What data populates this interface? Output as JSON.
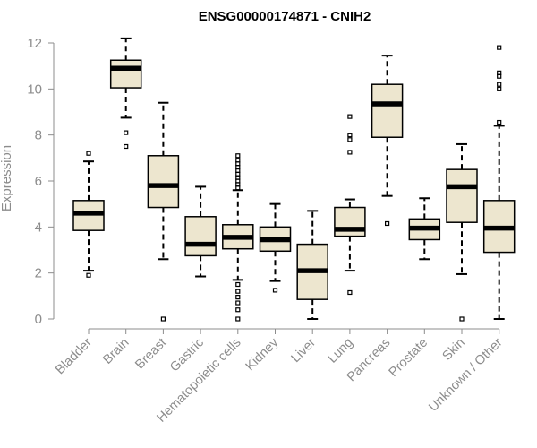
{
  "chart_data": {
    "type": "boxplot",
    "title": "ENSG00000174871 - CNIH2",
    "xlabel": "",
    "ylabel": "Expression",
    "ylim": [
      0,
      12
    ],
    "yticks": [
      0,
      2,
      4,
      6,
      8,
      10,
      12
    ],
    "box_fill": "#ede6cf",
    "categories": [
      "Bladder",
      "Brain",
      "Breast",
      "Gastric",
      "Hematopoietic cells",
      "Kidney",
      "Liver",
      "Lung",
      "Pancreas",
      "Prostate",
      "Skin",
      "Unknown / Other"
    ],
    "boxes": [
      {
        "name": "Bladder",
        "whisker_low": 2.1,
        "q1": 3.85,
        "median": 4.6,
        "q3": 5.15,
        "whisker_high": 6.85,
        "outliers": [
          1.9,
          7.2
        ]
      },
      {
        "name": "Brain",
        "whisker_low": 8.75,
        "q1": 10.05,
        "median": 10.9,
        "q3": 11.25,
        "whisker_high": 12.2,
        "outliers": [
          7.5,
          8.1
        ]
      },
      {
        "name": "Breast",
        "whisker_low": 2.6,
        "q1": 4.85,
        "median": 5.8,
        "q3": 7.1,
        "whisker_high": 9.4,
        "outliers": [
          0.0
        ]
      },
      {
        "name": "Gastric",
        "whisker_low": 1.85,
        "q1": 2.75,
        "median": 3.25,
        "q3": 4.45,
        "whisker_high": 5.75,
        "outliers": []
      },
      {
        "name": "Hematopoietic cells",
        "whisker_low": 1.7,
        "q1": 3.05,
        "median": 3.55,
        "q3": 4.1,
        "whisker_high": 5.6,
        "outliers": [
          0.0,
          0.4,
          0.7,
          0.95,
          1.2,
          1.5,
          5.7,
          5.85,
          6.0,
          6.15,
          6.3,
          6.45,
          6.6,
          6.75,
          6.9,
          7.1
        ]
      },
      {
        "name": "Kidney",
        "whisker_low": 1.65,
        "q1": 2.95,
        "median": 3.45,
        "q3": 4.0,
        "whisker_high": 5.0,
        "outliers": [
          1.25
        ]
      },
      {
        "name": "Liver",
        "whisker_low": 0.0,
        "q1": 0.85,
        "median": 2.1,
        "q3": 3.25,
        "whisker_high": 4.7,
        "outliers": []
      },
      {
        "name": "Lung",
        "whisker_low": 2.1,
        "q1": 3.6,
        "median": 3.9,
        "q3": 4.85,
        "whisker_high": 5.2,
        "outliers": [
          1.15,
          7.25,
          7.8,
          8.0,
          8.8
        ]
      },
      {
        "name": "Pancreas",
        "whisker_low": 5.35,
        "q1": 7.9,
        "median": 9.35,
        "q3": 10.2,
        "whisker_high": 11.45,
        "outliers": [
          4.15
        ]
      },
      {
        "name": "Prostate",
        "whisker_low": 2.6,
        "q1": 3.45,
        "median": 3.95,
        "q3": 4.35,
        "whisker_high": 5.25,
        "outliers": []
      },
      {
        "name": "Skin",
        "whisker_low": 1.95,
        "q1": 4.2,
        "median": 5.75,
        "q3": 6.5,
        "whisker_high": 7.6,
        "outliers": [
          0.0
        ]
      },
      {
        "name": "Unknown / Other",
        "whisker_low": 0.0,
        "q1": 2.9,
        "median": 3.95,
        "q3": 5.15,
        "whisker_high": 8.4,
        "outliers": [
          8.55,
          10.0,
          10.2,
          10.55,
          10.7,
          11.8
        ]
      }
    ]
  }
}
